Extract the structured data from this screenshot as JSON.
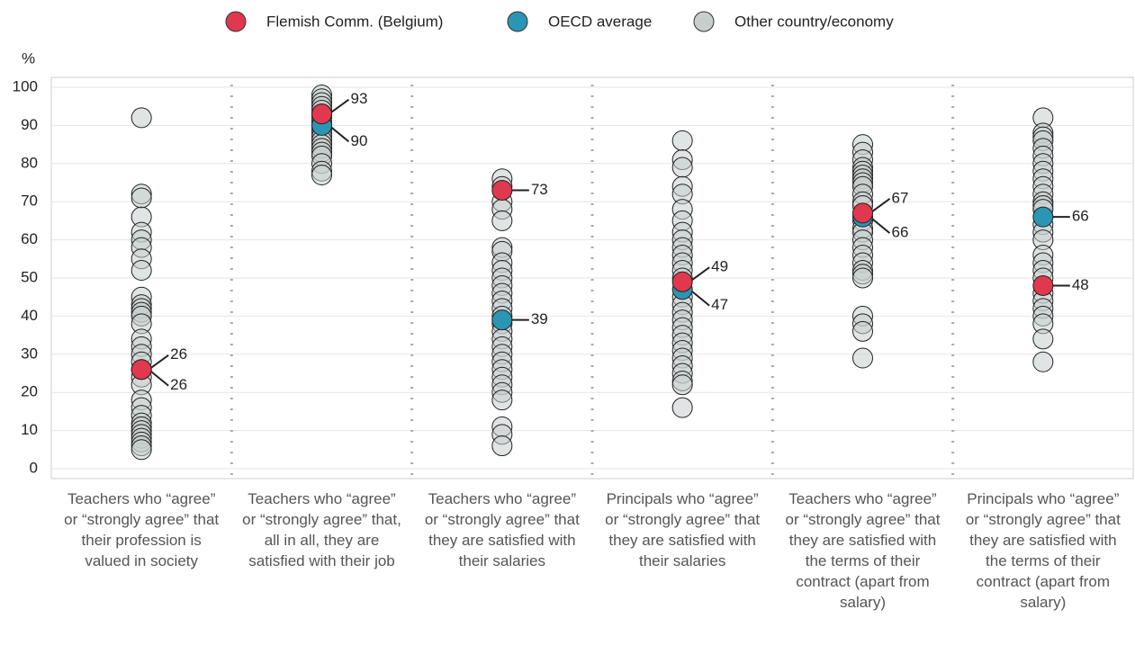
{
  "chart_data": {
    "type": "strip",
    "y_label": "%",
    "categories": [
      "Teachers who “agree” or “strongly agree” that their profession is valued in society",
      "Teachers who “agree” or “strongly agree” that, all in all, they are satisfied with their job",
      "Teachers who “agree” or “strongly agree” that they are satisfied with their salaries",
      "Principals who “agree” or “strongly agree” that they are satisfied with their salaries",
      "Teachers who “agree” or “strongly agree” that they are satisfied with the terms of their contract (apart from salary)",
      "Principals who “agree” or “strongly agree” that they are satisfied with the terms of their contract (apart from salary)"
    ],
    "series": [
      {
        "name": "Flemish Comm. (Belgium)",
        "color": "#e0384f",
        "values": [
          26,
          93,
          73,
          49,
          67,
          48
        ]
      },
      {
        "name": "OECD average",
        "color": "#2a96b4",
        "values": [
          26,
          90,
          39,
          47,
          66,
          66
        ]
      },
      {
        "name": "Other country/economy",
        "color": "#c8cdcd",
        "values": [
          [
            92,
            72,
            71,
            66,
            62,
            60,
            58,
            55,
            52,
            45,
            43,
            42,
            41,
            40,
            38,
            34,
            32,
            30,
            28,
            24,
            22,
            18,
            16,
            14,
            12,
            11,
            10,
            9,
            8,
            7,
            6,
            5
          ],
          [
            98,
            97,
            96,
            95,
            94,
            93,
            92,
            91,
            90,
            89,
            88,
            87,
            86,
            85,
            84,
            83,
            82,
            80,
            78,
            77
          ],
          [
            76,
            74,
            70,
            68,
            65,
            58,
            57,
            54,
            52,
            50,
            48,
            46,
            44,
            42,
            40,
            38,
            36,
            34,
            32,
            30,
            28,
            26,
            24,
            22,
            20,
            18,
            11,
            9,
            6
          ],
          [
            86,
            81,
            79,
            74,
            72,
            68,
            65,
            62,
            60,
            58,
            56,
            54,
            52,
            50,
            45,
            43,
            41,
            39,
            37,
            35,
            33,
            31,
            29,
            27,
            25,
            23,
            22,
            16
          ],
          [
            85,
            83,
            81,
            79,
            78,
            77,
            76,
            75,
            74,
            72,
            70,
            69,
            65,
            63,
            62,
            60,
            58,
            56,
            54,
            52,
            51,
            50,
            40,
            38,
            36,
            29
          ],
          [
            92,
            88,
            87,
            86,
            84,
            82,
            80,
            78,
            76,
            74,
            72,
            70,
            69,
            68,
            64,
            62,
            60,
            56,
            54,
            52,
            50,
            46,
            44,
            42,
            40,
            38,
            34,
            28
          ]
        ]
      }
    ],
    "ylim": [
      0,
      100
    ],
    "yticks": [
      0,
      10,
      20,
      30,
      40,
      50,
      60,
      70,
      80,
      90,
      100
    ],
    "grid": true,
    "legend": "top"
  }
}
